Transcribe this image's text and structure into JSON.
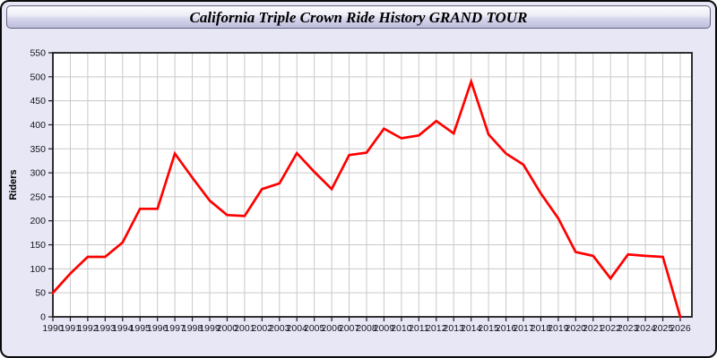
{
  "window": {
    "title": "California Triple Crown Ride History GRAND TOUR"
  },
  "colors": {
    "line": "#ff0000",
    "window_bg": "#e7e7f5",
    "titlebar_top": "#fdfdfe",
    "titlebar_bottom": "#bdbddd",
    "plot_bg": "#ffffff",
    "gridline": "#c9c9c9",
    "frame": "#1c1c1c",
    "tick_label": "#15151f"
  },
  "chart_data": {
    "type": "line",
    "title": "California Triple Crown Ride History GRAND TOUR",
    "xlabel": "",
    "ylabel": "Riders",
    "ylim": [
      0,
      550
    ],
    "ytick_step": 50,
    "grid": true,
    "legend_position": "none",
    "x": [
      1990,
      1991,
      1992,
      1993,
      1994,
      1995,
      1996,
      1997,
      1998,
      1999,
      2000,
      2001,
      2002,
      2003,
      2004,
      2005,
      2006,
      2007,
      2008,
      2009,
      2010,
      2011,
      2012,
      2013,
      2014,
      2015,
      2016,
      2017,
      2018,
      2019,
      2020,
      2021,
      2022,
      2023,
      2024,
      2025,
      2026
    ],
    "series": [
      {
        "name": "Riders",
        "color": "#ff0000",
        "values": [
          50,
          90,
          125,
          125,
          155,
          225,
          225,
          340,
          290,
          242,
          212,
          210,
          266,
          278,
          341,
          302,
          266,
          337,
          342,
          392,
          372,
          378,
          408,
          382,
          490,
          380,
          340,
          317,
          257,
          205,
          135,
          127,
          80,
          130,
          127,
          125,
          0
        ]
      }
    ]
  }
}
